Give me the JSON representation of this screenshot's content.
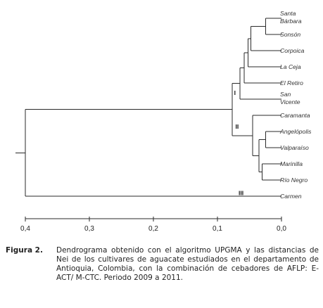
{
  "chart_data": {
    "type": "dendrogram",
    "leaves": [
      {
        "label": [
          "Santa",
          "Bárbara"
        ]
      },
      {
        "label": [
          "Sonsón"
        ]
      },
      {
        "label": [
          "Corpoica"
        ]
      },
      {
        "label": [
          "La Ceja"
        ]
      },
      {
        "label": [
          "El Retiro"
        ]
      },
      {
        "label": [
          "San",
          "Vicente"
        ]
      },
      {
        "label": [
          "Caramanta"
        ]
      },
      {
        "label": [
          "Angelópolis"
        ]
      },
      {
        "label": [
          "Valparaíso"
        ]
      },
      {
        "label": [
          "Marinilla"
        ]
      },
      {
        "label": [
          "Río Negro"
        ]
      },
      {
        "label": [
          "Carmen"
        ]
      }
    ],
    "merges": [
      {
        "a": "L0",
        "b": "L1",
        "height": 0.025
      },
      {
        "a": "M0",
        "b": "L2",
        "height": 0.048
      },
      {
        "a": "M1",
        "b": "L3",
        "height": 0.052
      },
      {
        "a": "M2",
        "b": "L4",
        "height": 0.058
      },
      {
        "a": "M3",
        "b": "L5",
        "height": 0.065
      },
      {
        "a": "L7",
        "b": "L8",
        "height": 0.025
      },
      {
        "a": "L9",
        "b": "L10",
        "height": 0.03
      },
      {
        "a": "M5",
        "b": "M6",
        "height": 0.035
      },
      {
        "a": "L6",
        "b": "M7",
        "height": 0.045
      },
      {
        "a": "M4",
        "b": "M8",
        "height": 0.077
      },
      {
        "a": "M9",
        "b": "L11",
        "height": 0.4
      }
    ],
    "cluster_labels": [
      {
        "text": "I",
        "leaf_pos": 4.6,
        "height": 0.074
      },
      {
        "text": "II",
        "leaf_pos": 6.7,
        "height": 0.072
      },
      {
        "text": "III",
        "leaf_pos": 10.8,
        "height": 0.067
      }
    ],
    "x_axis": {
      "ticks": [
        "0,4",
        "0,3",
        "0,2",
        "0,1",
        "0,0"
      ],
      "tick_values": [
        0.4,
        0.3,
        0.2,
        0.1,
        0.0
      ],
      "range": [
        0.4,
        0.0
      ]
    }
  },
  "caption": {
    "label": "Figura 2.",
    "text": "Dendrograma obtenido con el algoritmo UPGMA y las distancias de Nei de los cultivares de aguacate estudiados en el departamento de Antioquia, Colombia, con la combinación de cebadores de AFLP: E-ACT/ M-CTC. Periodo 2009 a 2011."
  }
}
